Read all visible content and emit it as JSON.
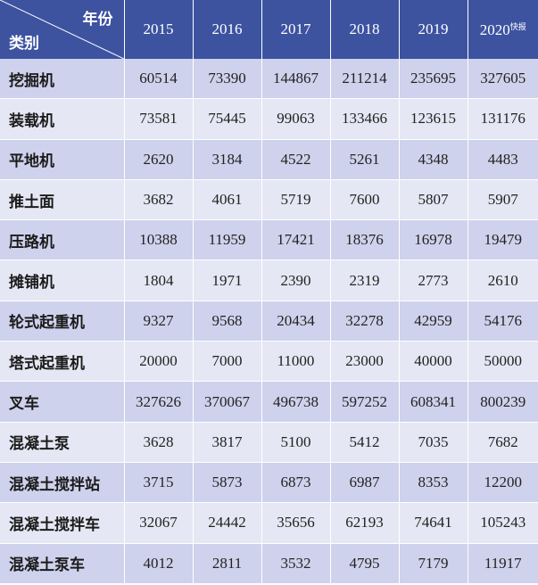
{
  "header": {
    "corner_top": "年份",
    "corner_bottom": "类别",
    "years": [
      "2015",
      "2016",
      "2017",
      "2018",
      "2019",
      "2020"
    ],
    "last_year_note": "快报"
  },
  "colors": {
    "header_bg": "#3d53a0",
    "row_dark": "#cfd2ec",
    "row_light": "#e6e7f4"
  },
  "rows": [
    {
      "category": "挖掘机",
      "values": [
        "60514",
        "73390",
        "144867",
        "211214",
        "235695",
        "327605"
      ]
    },
    {
      "category": "装载机",
      "values": [
        "73581",
        "75445",
        "99063",
        "133466",
        "123615",
        "131176"
      ]
    },
    {
      "category": "平地机",
      "values": [
        "2620",
        "3184",
        "4522",
        "5261",
        "4348",
        "4483"
      ]
    },
    {
      "category": "推土面",
      "values": [
        "3682",
        "4061",
        "5719",
        "7600",
        "5807",
        "5907"
      ]
    },
    {
      "category": "压路机",
      "values": [
        "10388",
        "11959",
        "17421",
        "18376",
        "16978",
        "19479"
      ]
    },
    {
      "category": "摊铺机",
      "values": [
        "1804",
        "1971",
        "2390",
        "2319",
        "2773",
        "2610"
      ]
    },
    {
      "category": "轮式起重机",
      "values": [
        "9327",
        "9568",
        "20434",
        "32278",
        "42959",
        "54176"
      ]
    },
    {
      "category": "塔式起重机",
      "values": [
        "20000",
        "7000",
        "11000",
        "23000",
        "40000",
        "50000"
      ]
    },
    {
      "category": "叉车",
      "values": [
        "327626",
        "370067",
        "496738",
        "597252",
        "608341",
        "800239"
      ]
    },
    {
      "category": "混凝土泵",
      "values": [
        "3628",
        "3817",
        "5100",
        "5412",
        "7035",
        "7682"
      ]
    },
    {
      "category": "混凝土搅拌站",
      "values": [
        "3715",
        "5873",
        "6873",
        "6987",
        "8353",
        "12200"
      ]
    },
    {
      "category": "混凝土搅拌车",
      "values": [
        "32067",
        "24442",
        "35656",
        "62193",
        "74641",
        "105243"
      ]
    },
    {
      "category": "混凝土泵车",
      "values": [
        "4012",
        "2811",
        "3532",
        "4795",
        "7179",
        "11917"
      ]
    }
  ]
}
